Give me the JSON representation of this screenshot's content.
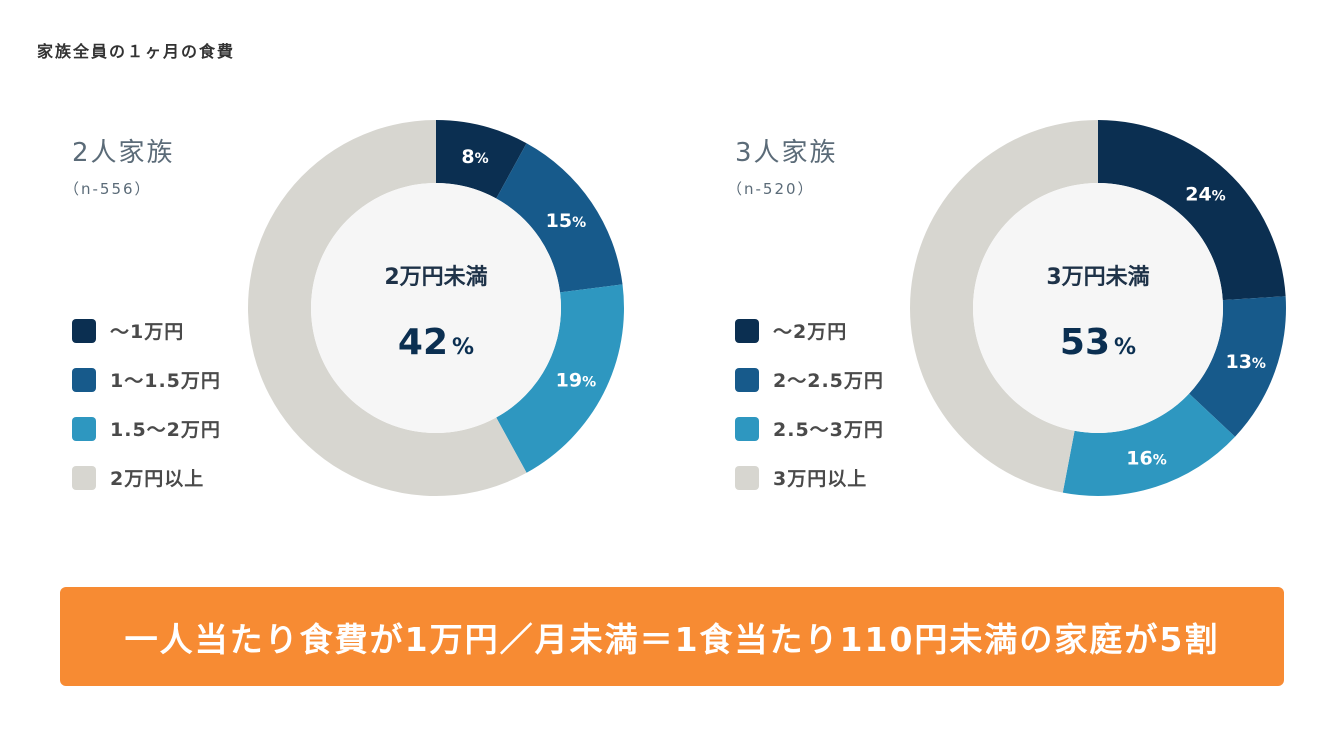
{
  "title": "家族全員の１ヶ月の食費",
  "colors": {
    "dark_navy": "#0b2f51",
    "navy": "#175a8b",
    "blue": "#2e97c0",
    "gray": "#d7d6d0",
    "center": "#f6f6f6",
    "banner": "#f78b33"
  },
  "chart_data": [
    {
      "type": "pie",
      "title": "2人家族",
      "subtitle": "（n-556）",
      "categories": [
        "～1万円",
        "1～1.5万円",
        "1.5～2万円",
        "2万円以上"
      ],
      "values": [
        8,
        15,
        19,
        58
      ],
      "value_labels": [
        "8",
        "15",
        "19",
        ""
      ],
      "unit": "%",
      "colors": [
        "#0b2f51",
        "#175a8b",
        "#2e97c0",
        "#d7d6d0"
      ],
      "center_label": "2万円未満",
      "center_value": "42",
      "legend": "left"
    },
    {
      "type": "pie",
      "title": "3人家族",
      "subtitle": "（n-520）",
      "categories": [
        "～2万円",
        "2～2.5万円",
        "2.5～3万円",
        "3万円以上"
      ],
      "values": [
        24,
        13,
        16,
        47
      ],
      "value_labels": [
        "24",
        "13",
        "16",
        ""
      ],
      "unit": "%",
      "colors": [
        "#0b2f51",
        "#175a8b",
        "#2e97c0",
        "#d7d6d0"
      ],
      "center_label": "3万円未満",
      "center_value": "53",
      "legend": "left"
    }
  ],
  "banner": {
    "text": "一人当たり食費が1万円／月未満＝1食当たり110円未満の家庭が5割"
  }
}
